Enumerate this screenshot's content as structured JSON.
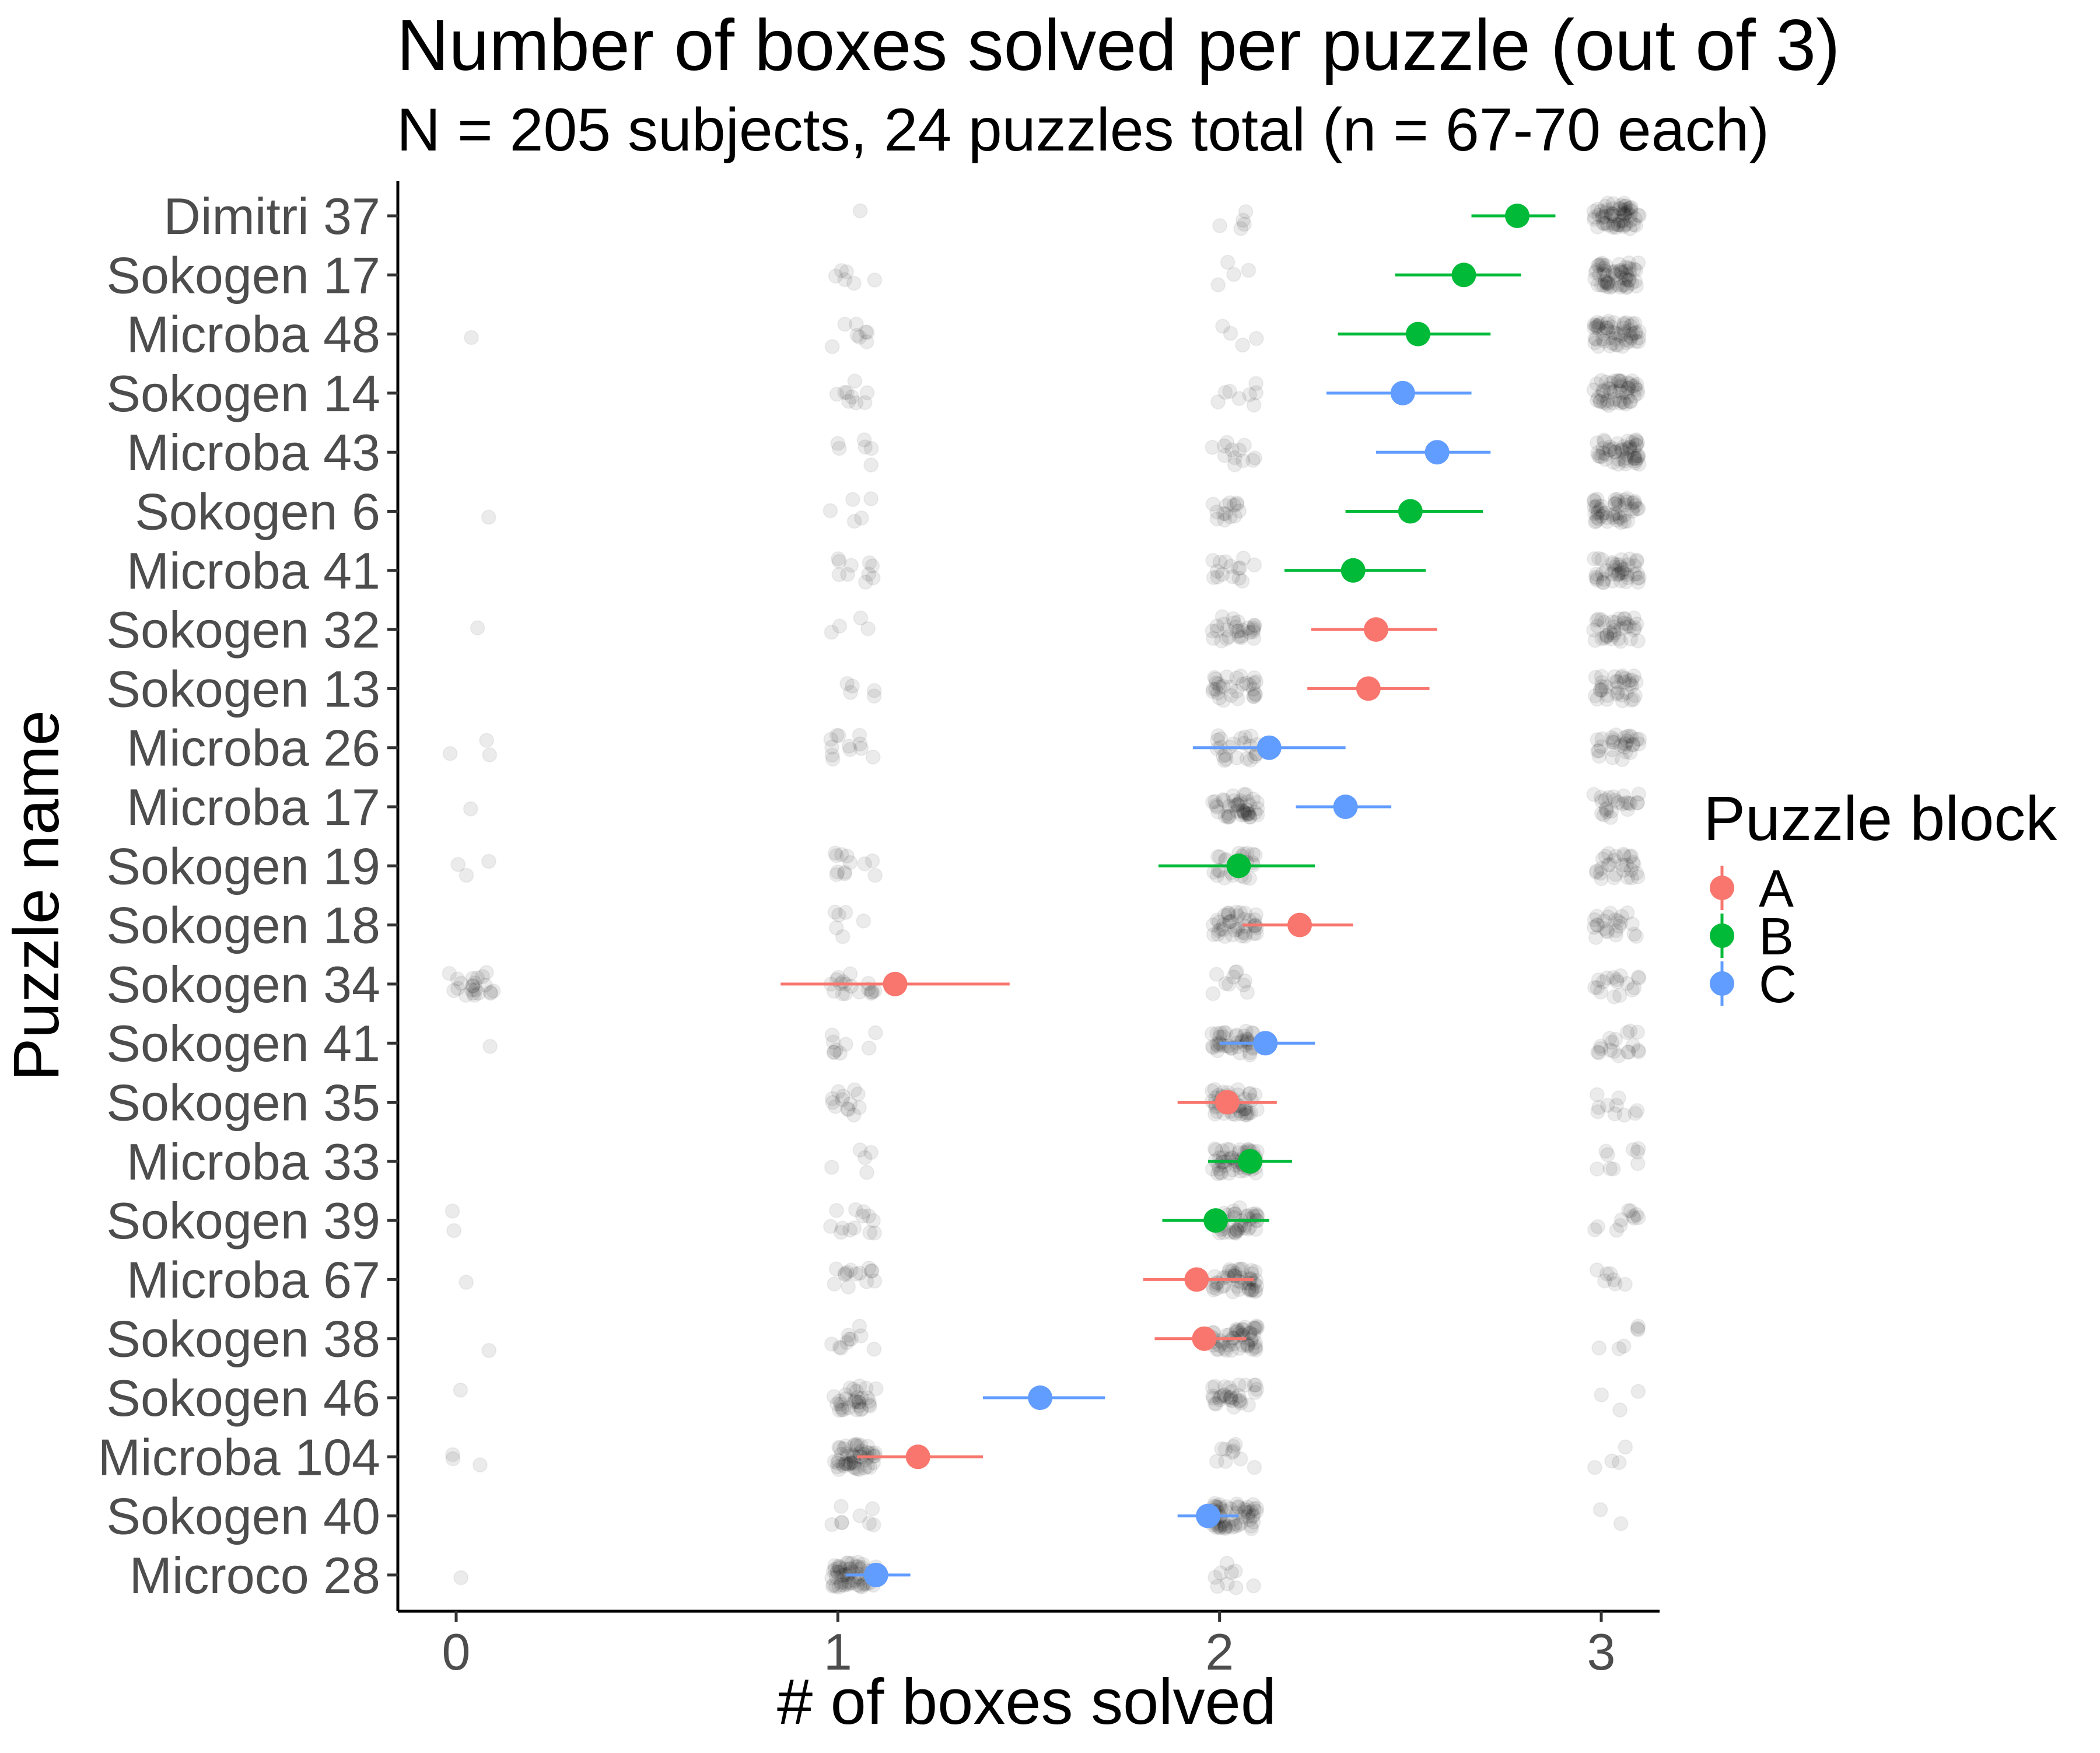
{
  "chart_data": {
    "type": "scatter",
    "title": "Number of boxes solved per puzzle (out of 3)",
    "subtitle": "N = 205 subjects, 24 puzzles total (n = 67-70 each)",
    "xlabel": "# of boxes solved",
    "ylabel": "Puzzle name",
    "xlim": [
      -0.15,
      3.15
    ],
    "xticks": [
      "0",
      "1",
      "2",
      "3"
    ],
    "grid": false,
    "legend": {
      "title": "Puzzle block",
      "placement": "right",
      "items": [
        {
          "label": "A",
          "color": "#F8766D"
        },
        {
          "label": "B",
          "color": "#00BA38"
        },
        {
          "label": "C",
          "color": "#619CFF"
        }
      ]
    },
    "puzzles": [
      {
        "name": "Dimitri 37",
        "block": "B",
        "mean": 2.78,
        "lo": 2.66,
        "hi": 2.88,
        "counts": [
          0,
          1,
          5,
          63
        ]
      },
      {
        "name": "Sokogen 17",
        "block": "B",
        "mean": 2.64,
        "lo": 2.46,
        "hi": 2.79,
        "counts": [
          0,
          6,
          4,
          59
        ]
      },
      {
        "name": "Microba 48",
        "block": "B",
        "mean": 2.52,
        "lo": 2.31,
        "hi": 2.71,
        "counts": [
          1,
          8,
          4,
          56
        ]
      },
      {
        "name": "Sokogen 14",
        "block": "C",
        "mean": 2.48,
        "lo": 2.28,
        "hi": 2.66,
        "counts": [
          0,
          9,
          8,
          52
        ]
      },
      {
        "name": "Microba 43",
        "block": "C",
        "mean": 2.57,
        "lo": 2.41,
        "hi": 2.71,
        "counts": [
          0,
          6,
          12,
          52
        ]
      },
      {
        "name": "Sokogen 6",
        "block": "B",
        "mean": 2.5,
        "lo": 2.33,
        "hi": 2.69,
        "counts": [
          1,
          5,
          14,
          49
        ]
      },
      {
        "name": "Microba 41",
        "block": "B",
        "mean": 2.35,
        "lo": 2.17,
        "hi": 2.54,
        "counts": [
          0,
          10,
          15,
          43
        ]
      },
      {
        "name": "Sokogen 32",
        "block": "A",
        "mean": 2.41,
        "lo": 2.24,
        "hi": 2.57,
        "counts": [
          1,
          4,
          28,
          36
        ]
      },
      {
        "name": "Sokogen 13",
        "block": "A",
        "mean": 2.39,
        "lo": 2.23,
        "hi": 2.55,
        "counts": [
          0,
          5,
          30,
          34
        ]
      },
      {
        "name": "Microba 26",
        "block": "C",
        "mean": 2.13,
        "lo": 1.93,
        "hi": 2.33,
        "counts": [
          3,
          12,
          23,
          30
        ]
      },
      {
        "name": "Microba 17",
        "block": "C",
        "mean": 2.33,
        "lo": 2.2,
        "hi": 2.45,
        "counts": [
          1,
          0,
          44,
          24
        ]
      },
      {
        "name": "Sokogen 19",
        "block": "B",
        "mean": 2.05,
        "lo": 1.84,
        "hi": 2.25,
        "counts": [
          3,
          12,
          25,
          28
        ]
      },
      {
        "name": "Sokogen 18",
        "block": "A",
        "mean": 2.21,
        "lo": 2.06,
        "hi": 2.35,
        "counts": [
          0,
          6,
          40,
          23
        ]
      },
      {
        "name": "Sokogen 34",
        "block": "A",
        "mean": 1.15,
        "lo": 0.85,
        "hi": 1.45,
        "counts": [
          22,
          18,
          10,
          17
        ]
      },
      {
        "name": "Sokogen 41",
        "block": "C",
        "mean": 2.12,
        "lo": 2.0,
        "hi": 2.25,
        "counts": [
          1,
          9,
          40,
          18
        ]
      },
      {
        "name": "Sokogen 35",
        "block": "A",
        "mean": 2.02,
        "lo": 1.89,
        "hi": 2.15,
        "counts": [
          0,
          13,
          45,
          10
        ]
      },
      {
        "name": "Microba 33",
        "block": "B",
        "mean": 2.08,
        "lo": 1.97,
        "hi": 2.19,
        "counts": [
          0,
          5,
          55,
          9
        ]
      },
      {
        "name": "Sokogen 39",
        "block": "B",
        "mean": 1.99,
        "lo": 1.85,
        "hi": 2.13,
        "counts": [
          2,
          13,
          43,
          11
        ]
      },
      {
        "name": "Microba 67",
        "block": "A",
        "mean": 1.94,
        "lo": 1.8,
        "hi": 2.09,
        "counts": [
          1,
          14,
          46,
          7
        ]
      },
      {
        "name": "Sokogen 38",
        "block": "A",
        "mean": 1.96,
        "lo": 1.83,
        "hi": 2.07,
        "counts": [
          1,
          10,
          52,
          6
        ]
      },
      {
        "name": "Sokogen 46",
        "block": "C",
        "mean": 1.53,
        "lo": 1.38,
        "hi": 1.7,
        "counts": [
          1,
          32,
          32,
          3
        ]
      },
      {
        "name": "Microba 104",
        "block": "A",
        "mean": 1.21,
        "lo": 1.05,
        "hi": 1.38,
        "counts": [
          3,
          52,
          10,
          4
        ]
      },
      {
        "name": "Sokogen 40",
        "block": "C",
        "mean": 1.97,
        "lo": 1.89,
        "hi": 2.05,
        "counts": [
          0,
          8,
          59,
          2
        ]
      },
      {
        "name": "Microco 28",
        "block": "C",
        "mean": 1.1,
        "lo": 1.02,
        "hi": 1.19,
        "counts": [
          1,
          58,
          9,
          0
        ]
      }
    ]
  }
}
